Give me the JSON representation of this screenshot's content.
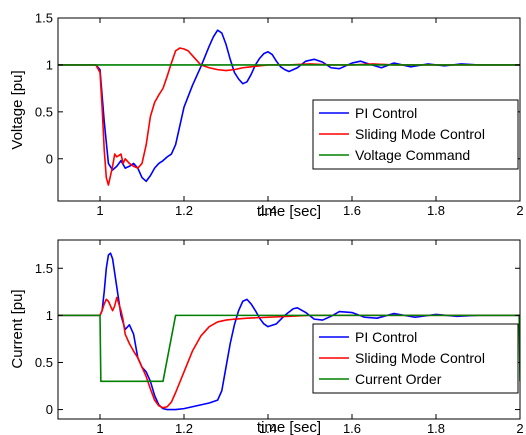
{
  "chart_data": [
    {
      "type": "line",
      "title": "",
      "xlabel": "time [sec]",
      "ylabel": "Voltage [pu]",
      "xlim": [
        0.9,
        2.0
      ],
      "ylim": [
        -0.45,
        1.5
      ],
      "xticks": [
        "1",
        "1.2",
        "1.4",
        "1.6",
        "1.8",
        "2"
      ],
      "xtick_values": [
        1.0,
        1.2,
        1.4,
        1.6,
        1.8,
        2.0
      ],
      "yticks": [
        "0",
        "0.5",
        "1",
        "1.5"
      ],
      "ytick_values": [
        0,
        0.5,
        1.0,
        1.5
      ],
      "grid": false,
      "legend_position": "bottom-right",
      "series": [
        {
          "name": "PI Control",
          "color": "#0000ff",
          "x": [
            0.9,
            0.95,
            0.99,
            1.0,
            1.01,
            1.02,
            1.03,
            1.04,
            1.05,
            1.06,
            1.07,
            1.08,
            1.09,
            1.1,
            1.11,
            1.12,
            1.13,
            1.14,
            1.15,
            1.16,
            1.17,
            1.18,
            1.19,
            1.2,
            1.22,
            1.24,
            1.26,
            1.27,
            1.28,
            1.29,
            1.3,
            1.31,
            1.32,
            1.33,
            1.34,
            1.35,
            1.36,
            1.37,
            1.38,
            1.39,
            1.4,
            1.41,
            1.42,
            1.43,
            1.44,
            1.45,
            1.47,
            1.49,
            1.51,
            1.53,
            1.55,
            1.57,
            1.6,
            1.62,
            1.64,
            1.67,
            1.7,
            1.74,
            1.78,
            1.82,
            1.86,
            1.9,
            1.95,
            2.0
          ],
          "y": [
            1.0,
            1.0,
            1.0,
            0.95,
            0.4,
            -0.05,
            -0.12,
            -0.08,
            -0.02,
            -0.1,
            -0.08,
            -0.05,
            -0.1,
            -0.2,
            -0.24,
            -0.18,
            -0.1,
            -0.05,
            -0.02,
            0.02,
            0.05,
            0.15,
            0.35,
            0.55,
            0.78,
            0.98,
            1.2,
            1.3,
            1.37,
            1.34,
            1.22,
            1.06,
            0.92,
            0.85,
            0.8,
            0.82,
            0.9,
            1.0,
            1.07,
            1.12,
            1.14,
            1.11,
            1.04,
            0.98,
            0.95,
            0.93,
            0.97,
            1.04,
            1.06,
            1.03,
            0.97,
            0.96,
            1.02,
            1.04,
            1.01,
            0.97,
            1.02,
            0.98,
            1.01,
            0.99,
            1.01,
            1.0,
            1.0,
            1.0
          ]
        },
        {
          "name": "Sliding Mode Control",
          "color": "#ff0000",
          "x": [
            0.9,
            0.95,
            0.99,
            1.0,
            1.005,
            1.01,
            1.015,
            1.02,
            1.03,
            1.035,
            1.04,
            1.05,
            1.055,
            1.06,
            1.07,
            1.08,
            1.09,
            1.1,
            1.11,
            1.12,
            1.13,
            1.14,
            1.15,
            1.16,
            1.17,
            1.18,
            1.19,
            1.2,
            1.21,
            1.22,
            1.24,
            1.26,
            1.28,
            1.3,
            1.32,
            1.34,
            1.36,
            1.38,
            1.4,
            1.45,
            1.5,
            1.55,
            1.6,
            1.65,
            1.7,
            1.8,
            1.9,
            2.0
          ],
          "y": [
            1.0,
            1.0,
            1.0,
            0.92,
            0.55,
            0.1,
            -0.2,
            -0.28,
            -0.08,
            0.05,
            0.02,
            0.05,
            -0.05,
            0.0,
            -0.05,
            -0.08,
            -0.1,
            -0.05,
            0.15,
            0.45,
            0.6,
            0.68,
            0.75,
            0.88,
            1.02,
            1.15,
            1.18,
            1.17,
            1.15,
            1.1,
            1.0,
            0.97,
            0.95,
            0.94,
            0.95,
            0.97,
            0.98,
            0.99,
            1.0,
            1.0,
            1.01,
            1.0,
            1.0,
            1.01,
            1.0,
            1.0,
            1.0,
            1.0
          ]
        },
        {
          "name": "Voltage Command",
          "color": "#008000",
          "x": [
            0.9,
            2.0
          ],
          "y": [
            1.0,
            1.0
          ]
        }
      ]
    },
    {
      "type": "line",
      "title": "",
      "xlabel": "time [sec]",
      "ylabel": "Current [pu]",
      "xlim": [
        0.9,
        2.0
      ],
      "ylim": [
        -0.1,
        1.8
      ],
      "xticks": [
        "1",
        "1.2",
        "1.4",
        "1.6",
        "1.8",
        "2"
      ],
      "xtick_values": [
        1.0,
        1.2,
        1.4,
        1.6,
        1.8,
        2.0
      ],
      "yticks": [
        "0",
        "0.5",
        "1",
        "1.5"
      ],
      "ytick_values": [
        0,
        0.5,
        1.0,
        1.5
      ],
      "grid": false,
      "legend_position": "bottom-right",
      "series": [
        {
          "name": "PI Control",
          "color": "#0000ff",
          "x": [
            0.9,
            0.95,
            1.0,
            1.005,
            1.01,
            1.015,
            1.02,
            1.025,
            1.03,
            1.04,
            1.05,
            1.06,
            1.07,
            1.08,
            1.09,
            1.1,
            1.11,
            1.12,
            1.13,
            1.14,
            1.15,
            1.16,
            1.18,
            1.2,
            1.22,
            1.24,
            1.26,
            1.28,
            1.29,
            1.3,
            1.31,
            1.32,
            1.33,
            1.34,
            1.35,
            1.36,
            1.37,
            1.38,
            1.39,
            1.4,
            1.42,
            1.44,
            1.46,
            1.47,
            1.49,
            1.51,
            1.53,
            1.55,
            1.57,
            1.6,
            1.63,
            1.66,
            1.7,
            1.75,
            1.8,
            1.85,
            1.9,
            1.95,
            2.0
          ],
          "y": [
            1.0,
            1.0,
            1.0,
            1.05,
            1.25,
            1.5,
            1.64,
            1.66,
            1.6,
            1.3,
            1.0,
            0.85,
            0.9,
            0.8,
            0.55,
            0.45,
            0.4,
            0.3,
            0.15,
            0.05,
            0.01,
            0.0,
            0.0,
            0.01,
            0.03,
            0.05,
            0.07,
            0.1,
            0.2,
            0.45,
            0.7,
            0.9,
            1.05,
            1.15,
            1.17,
            1.12,
            1.05,
            0.97,
            0.91,
            0.88,
            0.91,
            1.0,
            1.07,
            1.08,
            1.03,
            0.96,
            0.95,
            0.99,
            1.04,
            1.03,
            0.98,
            0.97,
            1.02,
            0.98,
            1.01,
            0.99,
            1.0,
            1.0,
            1.0
          ]
        },
        {
          "name": "Sliding Mode Control",
          "color": "#ff0000",
          "x": [
            0.9,
            0.95,
            1.0,
            1.005,
            1.01,
            1.015,
            1.02,
            1.03,
            1.035,
            1.04,
            1.05,
            1.055,
            1.06,
            1.07,
            1.08,
            1.09,
            1.1,
            1.11,
            1.12,
            1.13,
            1.14,
            1.15,
            1.16,
            1.17,
            1.18,
            1.2,
            1.22,
            1.24,
            1.26,
            1.28,
            1.3,
            1.32,
            1.35,
            1.4,
            1.45,
            1.5,
            1.6,
            1.7,
            1.8,
            1.9,
            2.0
          ],
          "y": [
            1.0,
            1.0,
            1.0,
            1.05,
            1.12,
            1.17,
            1.15,
            1.05,
            1.1,
            1.19,
            1.05,
            0.95,
            0.8,
            0.7,
            0.62,
            0.55,
            0.45,
            0.35,
            0.22,
            0.1,
            0.04,
            0.02,
            0.03,
            0.08,
            0.18,
            0.4,
            0.62,
            0.78,
            0.88,
            0.93,
            0.95,
            0.96,
            0.97,
            0.98,
            0.99,
            1.0,
            1.0,
            1.0,
            1.0,
            1.0,
            1.0
          ]
        },
        {
          "name": "Current Order",
          "color": "#008000",
          "x": [
            0.9,
            1.0,
            1.002,
            1.15,
            1.18,
            1.25,
            1.998,
            2.0
          ],
          "y": [
            1.0,
            1.0,
            0.3,
            0.3,
            1.0,
            1.0,
            1.0,
            0.3
          ]
        }
      ]
    }
  ]
}
